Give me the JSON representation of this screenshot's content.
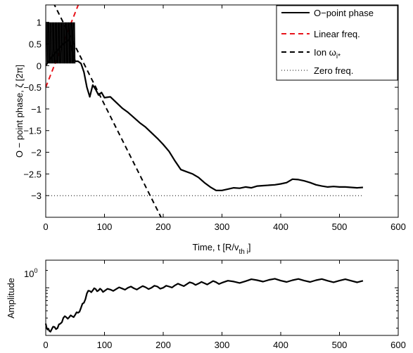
{
  "chart_data": [
    {
      "type": "line",
      "xlabel_main": "Time, t [R/v",
      "xlabel_sub": "th i",
      "xlabel_end": "]",
      "ylabel": "O − point phase, ζ [2π]",
      "xlim": [
        0,
        600
      ],
      "ylim": [
        -3.5,
        1.4
      ],
      "xticks": [
        0,
        100,
        200,
        300,
        400,
        500,
        600
      ],
      "yticks": [
        -3,
        -2.5,
        -2,
        -1.5,
        -1,
        -0.5,
        0,
        0.5,
        1
      ],
      "ytick_labels": [
        "−3",
        "−2.5",
        "−2",
        "−1.5",
        "−1",
        "−0.5",
        "0",
        "0.5",
        "1"
      ],
      "grid": false,
      "legend_position": "top-right",
      "legend": [
        {
          "label": "O−point phase",
          "style": "solid",
          "color": "#000000"
        },
        {
          "label": "Linear freq.",
          "style": "dashed",
          "color": "#e8141b"
        },
        {
          "label": "Ion ω",
          "sub": "i*",
          "style": "dashed",
          "color": "#000000"
        },
        {
          "label": "Zero freq.",
          "style": "dotted",
          "color": "#000000"
        }
      ],
      "series": [
        {
          "name": "O−point phase",
          "x": [
            0,
            10,
            20,
            30,
            40,
            50,
            55,
            60,
            65,
            70,
            75,
            80,
            85,
            90,
            95,
            100,
            110,
            120,
            130,
            140,
            150,
            160,
            170,
            180,
            190,
            200,
            210,
            220,
            230,
            240,
            250,
            260,
            270,
            280,
            290,
            300,
            310,
            320,
            330,
            340,
            350,
            360,
            370,
            380,
            390,
            400,
            410,
            420,
            430,
            440,
            450,
            460,
            470,
            480,
            490,
            500,
            510,
            520,
            530,
            540
          ],
          "y": [
            0.0,
            0.2,
            0.35,
            0.5,
            0.6,
            0.1,
            0.1,
            0.05,
            -0.15,
            -0.5,
            -0.72,
            -0.45,
            -0.55,
            -0.68,
            -0.62,
            -0.74,
            -0.72,
            -0.85,
            -0.98,
            -1.08,
            -1.2,
            -1.32,
            -1.42,
            -1.55,
            -1.68,
            -1.82,
            -1.98,
            -2.2,
            -2.4,
            -2.45,
            -2.5,
            -2.58,
            -2.7,
            -2.8,
            -2.88,
            -2.88,
            -2.85,
            -2.82,
            -2.83,
            -2.8,
            -2.82,
            -2.78,
            -2.77,
            -2.76,
            -2.75,
            -2.73,
            -2.7,
            -2.62,
            -2.63,
            -2.66,
            -2.7,
            -2.75,
            -2.78,
            -2.8,
            -2.79,
            -2.8,
            -2.8,
            -2.81,
            -2.82,
            -2.81
          ]
        },
        {
          "name": "Linear freq.",
          "x": [
            0,
            60
          ],
          "y": [
            -0.5,
            1.56
          ]
        },
        {
          "name": "Ion ωi*",
          "x": [
            0,
            200
          ],
          "y": [
            1.8,
            -3.6
          ]
        },
        {
          "name": "Zero freq.",
          "x": [
            0,
            540
          ],
          "y": [
            -3,
            -3
          ]
        }
      ]
    },
    {
      "type": "line",
      "ylabel": "Amplitude",
      "xlim": [
        0,
        600
      ],
      "yscale": "log",
      "ylim": [
        0.15,
        3
      ],
      "xticks": [
        0,
        100,
        200,
        300,
        400,
        500,
        600
      ],
      "ytick_label": "10",
      "ytick_exp": "0",
      "grid": false,
      "series": [
        {
          "name": "Amplitude",
          "x": [
            0,
            3,
            6,
            10,
            15,
            20,
            25,
            30,
            35,
            40,
            45,
            50,
            55,
            60,
            65,
            70,
            75,
            80,
            85,
            90,
            95,
            100,
            110,
            120,
            130,
            140,
            150,
            160,
            170,
            180,
            190,
            200,
            210,
            220,
            230,
            240,
            250,
            260,
            270,
            280,
            290,
            300,
            320,
            340,
            360,
            380,
            400,
            420,
            440,
            460,
            480,
            500,
            520,
            540
          ],
          "y": [
            0.24,
            0.19,
            0.18,
            0.19,
            0.21,
            0.2,
            0.24,
            0.3,
            0.31,
            0.31,
            0.32,
            0.34,
            0.37,
            0.45,
            0.55,
            0.8,
            0.88,
            0.9,
            0.95,
            0.9,
            0.92,
            0.88,
            0.93,
            0.95,
            0.97,
            1.0,
            0.98,
            1.0,
            1.02,
            1.0,
            1.05,
            1.0,
            1.05,
            1.1,
            1.12,
            1.15,
            1.2,
            1.18,
            1.2,
            1.22,
            1.25,
            1.22,
            1.28,
            1.3,
            1.35,
            1.37,
            1.33,
            1.35,
            1.33,
            1.35,
            1.32,
            1.33,
            1.32,
            1.32
          ]
        }
      ]
    }
  ]
}
